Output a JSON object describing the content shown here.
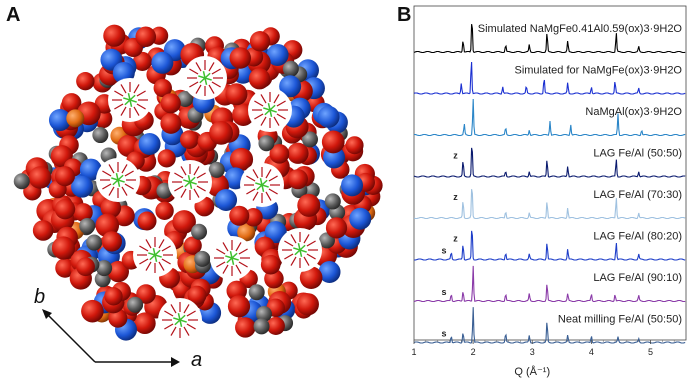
{
  "figure": {
    "panel_a_letter": "A",
    "panel_b_letter": "B",
    "axis_b_label": "b",
    "axis_a_label": "a"
  },
  "chart_data": {
    "type": "line",
    "xlabel": "Q (Å⁻¹)",
    "xlim": [
      1,
      5.6
    ],
    "xticks": [
      1,
      2,
      3,
      4,
      5
    ],
    "ylabel": "",
    "series": [
      {
        "label": "Simulated NaMgFe0.41Al0.59(ox)3·9H2O",
        "color": "#000000",
        "peaks": [
          [
            1.83,
            0.35
          ],
          [
            1.98,
            1.0
          ],
          [
            2.55,
            0.2
          ],
          [
            2.95,
            0.2
          ],
          [
            3.25,
            0.55
          ],
          [
            3.6,
            0.3
          ],
          [
            4.42,
            0.55
          ],
          [
            4.8,
            0.15
          ]
        ]
      },
      {
        "label": "Simulated for NaMgFe(ox)3·9H2O",
        "color": "#1a2fd1",
        "peaks": [
          [
            1.8,
            0.3
          ],
          [
            1.97,
            1.0
          ],
          [
            2.5,
            0.2
          ],
          [
            2.9,
            0.2
          ],
          [
            3.2,
            0.45
          ],
          [
            3.6,
            0.3
          ],
          [
            4.0,
            0.2
          ],
          [
            4.4,
            0.35
          ],
          [
            4.8,
            0.15
          ]
        ]
      },
      {
        "label": "NaMgAl(ox)3·9H2O",
        "color": "#2b86c8",
        "peaks": [
          [
            1.85,
            0.3
          ],
          [
            2.0,
            1.0
          ],
          [
            2.55,
            0.2
          ],
          [
            2.95,
            0.15
          ],
          [
            3.3,
            0.4
          ],
          [
            3.65,
            0.3
          ],
          [
            4.45,
            0.6
          ],
          [
            4.85,
            0.15
          ]
        ]
      },
      {
        "label": "LAG Fe/Al (50:50)",
        "color": "#0a1a6e",
        "marks": [
          "z"
        ],
        "peaks": [
          [
            1.83,
            0.45
          ],
          [
            1.98,
            1.0
          ],
          [
            2.55,
            0.15
          ],
          [
            2.95,
            0.15
          ],
          [
            3.25,
            0.5
          ],
          [
            3.6,
            0.3
          ],
          [
            4.42,
            0.5
          ],
          [
            4.8,
            0.15
          ]
        ]
      },
      {
        "label": "LAG Fe/Al (70:30)",
        "color": "#9fc1e0",
        "marks": [
          "z"
        ],
        "peaks": [
          [
            1.83,
            0.5
          ],
          [
            1.98,
            1.0
          ],
          [
            2.55,
            0.2
          ],
          [
            2.95,
            0.15
          ],
          [
            3.25,
            0.5
          ],
          [
            3.6,
            0.3
          ],
          [
            4.42,
            0.6
          ],
          [
            4.8,
            0.15
          ]
        ]
      },
      {
        "label": "LAG Fe/Al (80:20)",
        "color": "#1e3ec9",
        "marks": [
          "z",
          "s"
        ],
        "peaks": [
          [
            1.63,
            0.2
          ],
          [
            1.83,
            0.45
          ],
          [
            1.98,
            1.0
          ],
          [
            2.55,
            0.2
          ],
          [
            2.95,
            0.15
          ],
          [
            3.25,
            0.5
          ],
          [
            3.6,
            0.3
          ],
          [
            4.42,
            0.5
          ],
          [
            4.8,
            0.15
          ]
        ]
      },
      {
        "label": "LAG Fe/Al (90:10)",
        "color": "#8a3aa8",
        "marks": [
          "s"
        ],
        "peaks": [
          [
            1.63,
            0.2
          ],
          [
            1.83,
            0.3
          ],
          [
            2.0,
            1.0
          ],
          [
            2.55,
            0.2
          ],
          [
            2.95,
            0.2
          ],
          [
            3.25,
            0.5
          ],
          [
            3.6,
            0.2
          ],
          [
            4.0,
            0.2
          ],
          [
            4.4,
            0.2
          ],
          [
            4.8,
            0.15
          ]
        ]
      },
      {
        "label": "Neat milling Fe/Al (50:50)",
        "color": "#3a5f94",
        "marks": [
          "s"
        ],
        "peaks": [
          [
            1.63,
            0.2
          ],
          [
            1.83,
            0.3
          ],
          [
            2.0,
            1.0
          ],
          [
            2.55,
            0.25
          ],
          [
            2.95,
            0.2
          ],
          [
            3.25,
            0.6
          ],
          [
            3.6,
            0.2
          ],
          [
            4.0,
            0.2
          ],
          [
            4.45,
            0.15
          ],
          [
            4.8,
            0.1
          ]
        ]
      }
    ]
  }
}
